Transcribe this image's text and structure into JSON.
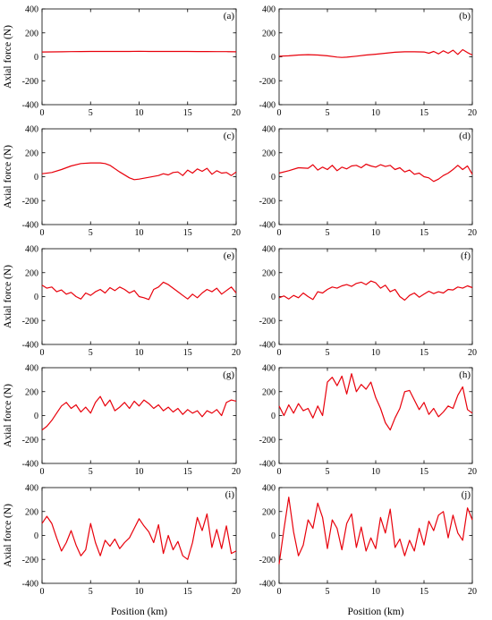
{
  "figure": {
    "ylabel": "Axial force (N)",
    "xlabel": "Position (km)",
    "line_color": "#e8000b"
  },
  "chart_data": [
    {
      "label": "(a)",
      "type": "line",
      "xlim": [
        0,
        20
      ],
      "ylim": [
        -400,
        400
      ],
      "xticks": [
        0,
        5,
        10,
        15,
        20
      ],
      "yticks": [
        -400,
        -200,
        0,
        200,
        400
      ],
      "x": [
        0,
        1,
        2,
        3,
        4,
        5,
        6,
        7,
        8,
        9,
        10,
        11,
        12,
        13,
        14,
        15,
        16,
        17,
        18,
        19,
        20
      ],
      "y": [
        40,
        41,
        42,
        43,
        44,
        45,
        45,
        45,
        45,
        45,
        46,
        45,
        45,
        45,
        45,
        45,
        44,
        44,
        43,
        43,
        42
      ]
    },
    {
      "label": "(b)",
      "type": "line",
      "xlim": [
        0,
        20
      ],
      "ylim": [
        -400,
        400
      ],
      "xticks": [
        0,
        5,
        10,
        15,
        20
      ],
      "yticks": [
        -400,
        -200,
        0,
        200,
        400
      ],
      "x": [
        0,
        1,
        2,
        3,
        4,
        5,
        6,
        6.5,
        7,
        8,
        9,
        10,
        11,
        12,
        13,
        14,
        15,
        15.5,
        16,
        16.5,
        17,
        17.5,
        18,
        18.5,
        19,
        19.5,
        20
      ],
      "y": [
        5,
        8,
        15,
        18,
        15,
        8,
        -2,
        -5,
        -3,
        5,
        15,
        22,
        30,
        38,
        42,
        42,
        40,
        30,
        45,
        25,
        50,
        30,
        55,
        20,
        60,
        35,
        15
      ]
    },
    {
      "label": "(c)",
      "type": "line",
      "xlim": [
        0,
        20
      ],
      "ylim": [
        -400,
        400
      ],
      "xticks": [
        0,
        5,
        10,
        15,
        20
      ],
      "yticks": [
        -400,
        -200,
        0,
        200,
        400
      ],
      "x": [
        0,
        1,
        2,
        3,
        4,
        5,
        6,
        6.5,
        7,
        8,
        9,
        9.5,
        10,
        11,
        12,
        12.5,
        13,
        13.5,
        14,
        14.5,
        15,
        15.5,
        16,
        16.5,
        17,
        17.5,
        18,
        18.5,
        19,
        19.5,
        20
      ],
      "y": [
        25,
        35,
        60,
        90,
        110,
        115,
        115,
        110,
        95,
        40,
        -10,
        -25,
        -20,
        -5,
        10,
        25,
        15,
        35,
        40,
        10,
        55,
        30,
        65,
        45,
        70,
        20,
        50,
        30,
        35,
        10,
        40
      ]
    },
    {
      "label": "(d)",
      "type": "line",
      "xlim": [
        0,
        20
      ],
      "ylim": [
        -400,
        400
      ],
      "xticks": [
        0,
        5,
        10,
        15,
        20
      ],
      "yticks": [
        -400,
        -200,
        0,
        200,
        400
      ],
      "x": [
        0,
        1,
        2,
        3,
        3.5,
        4,
        4.5,
        5,
        5.5,
        6,
        6.5,
        7,
        7.5,
        8,
        8.5,
        9,
        9.5,
        10,
        10.5,
        11,
        11.5,
        12,
        12.5,
        13,
        13.5,
        14,
        14.5,
        15,
        15.5,
        16,
        16.5,
        17,
        17.5,
        18,
        18.5,
        19,
        19.5,
        20
      ],
      "y": [
        30,
        50,
        75,
        70,
        100,
        55,
        80,
        60,
        95,
        50,
        80,
        65,
        90,
        95,
        75,
        105,
        90,
        80,
        100,
        85,
        95,
        60,
        75,
        40,
        55,
        20,
        30,
        0,
        -10,
        -40,
        -20,
        10,
        30,
        60,
        95,
        60,
        90,
        20
      ]
    },
    {
      "label": "(e)",
      "type": "line",
      "xlim": [
        0,
        20
      ],
      "ylim": [
        -400,
        400
      ],
      "xticks": [
        0,
        5,
        10,
        15,
        20
      ],
      "yticks": [
        -400,
        -200,
        0,
        200,
        400
      ],
      "x": [
        0,
        0.5,
        1,
        1.5,
        2,
        2.5,
        3,
        3.5,
        4,
        4.5,
        5,
        5.5,
        6,
        6.5,
        7,
        7.5,
        8,
        8.5,
        9,
        9.5,
        10,
        10.5,
        11,
        11.5,
        12,
        12.5,
        13,
        13.5,
        14,
        14.5,
        15,
        15.5,
        16,
        16.5,
        17,
        17.5,
        18,
        18.5,
        19,
        19.5,
        20
      ],
      "y": [
        95,
        70,
        80,
        40,
        55,
        20,
        35,
        0,
        -20,
        30,
        10,
        40,
        60,
        30,
        75,
        50,
        80,
        60,
        30,
        50,
        0,
        -10,
        -25,
        60,
        80,
        120,
        100,
        70,
        40,
        10,
        -20,
        20,
        -10,
        30,
        60,
        40,
        70,
        20,
        50,
        80,
        30
      ]
    },
    {
      "label": "(f)",
      "type": "line",
      "xlim": [
        0,
        20
      ],
      "ylim": [
        -400,
        400
      ],
      "xticks": [
        0,
        5,
        10,
        15,
        20
      ],
      "yticks": [
        -400,
        -200,
        0,
        200,
        400
      ],
      "x": [
        0,
        0.5,
        1,
        1.5,
        2,
        2.5,
        3,
        3.5,
        4,
        4.5,
        5,
        5.5,
        6,
        6.5,
        7,
        7.5,
        8,
        8.5,
        9,
        9.5,
        10,
        10.5,
        11,
        11.5,
        12,
        12.5,
        13,
        13.5,
        14,
        14.5,
        15,
        15.5,
        16,
        16.5,
        17,
        17.5,
        18,
        18.5,
        19,
        19.5,
        20
      ],
      "y": [
        -10,
        5,
        -20,
        10,
        -10,
        30,
        0,
        -25,
        40,
        30,
        60,
        80,
        70,
        90,
        100,
        85,
        110,
        120,
        100,
        130,
        115,
        70,
        95,
        40,
        60,
        0,
        -30,
        10,
        30,
        -5,
        20,
        45,
        25,
        40,
        30,
        60,
        55,
        80,
        70,
        90,
        75
      ]
    },
    {
      "label": "(g)",
      "type": "line",
      "xlim": [
        0,
        20
      ],
      "ylim": [
        -400,
        400
      ],
      "xticks": [
        0,
        5,
        10,
        15,
        20
      ],
      "yticks": [
        -400,
        -200,
        0,
        200,
        400
      ],
      "x": [
        0,
        0.5,
        1,
        1.5,
        2,
        2.5,
        3,
        3.5,
        4,
        4.5,
        5,
        5.5,
        6,
        6.5,
        7,
        7.5,
        8,
        8.5,
        9,
        9.5,
        10,
        10.5,
        11,
        11.5,
        12,
        12.5,
        13,
        13.5,
        14,
        14.5,
        15,
        15.5,
        16,
        16.5,
        17,
        17.5,
        18,
        18.5,
        19,
        19.5,
        20
      ],
      "y": [
        -120,
        -90,
        -40,
        20,
        80,
        110,
        60,
        90,
        30,
        70,
        20,
        110,
        160,
        80,
        130,
        40,
        70,
        110,
        60,
        120,
        80,
        130,
        100,
        60,
        90,
        40,
        70,
        30,
        60,
        10,
        50,
        20,
        40,
        -10,
        40,
        20,
        50,
        0,
        110,
        130,
        120
      ]
    },
    {
      "label": "(h)",
      "type": "line",
      "xlim": [
        0,
        20
      ],
      "ylim": [
        -400,
        400
      ],
      "xticks": [
        0,
        5,
        10,
        15,
        20
      ],
      "yticks": [
        -400,
        -200,
        0,
        200,
        400
      ],
      "x": [
        0,
        0.5,
        1,
        1.5,
        2,
        2.5,
        3,
        3.5,
        4,
        4.5,
        5,
        5.5,
        6,
        6.5,
        7,
        7.5,
        8,
        8.5,
        9,
        9.5,
        10,
        10.5,
        11,
        11.5,
        12,
        12.5,
        13,
        13.5,
        14,
        14.5,
        15,
        15.5,
        16,
        16.5,
        17,
        17.5,
        18,
        18.5,
        19,
        19.5,
        20
      ],
      "y": [
        80,
        0,
        90,
        20,
        100,
        40,
        60,
        -20,
        80,
        0,
        280,
        320,
        250,
        330,
        180,
        350,
        200,
        260,
        220,
        280,
        150,
        60,
        -60,
        -120,
        -20,
        60,
        200,
        210,
        130,
        50,
        110,
        10,
        60,
        -10,
        30,
        80,
        60,
        170,
        240,
        50,
        20
      ]
    },
    {
      "label": "(i)",
      "type": "line",
      "xlim": [
        0,
        20
      ],
      "ylim": [
        -400,
        400
      ],
      "xticks": [
        0,
        5,
        10,
        15,
        20
      ],
      "yticks": [
        -400,
        -200,
        0,
        200,
        400
      ],
      "x": [
        0,
        0.5,
        1,
        1.5,
        2,
        2.5,
        3,
        3.5,
        4,
        4.5,
        5,
        5.5,
        6,
        6.5,
        7,
        7.5,
        8,
        8.5,
        9,
        9.5,
        10,
        10.5,
        11,
        11.5,
        12,
        12.5,
        13,
        13.5,
        14,
        14.5,
        15,
        15.5,
        16,
        16.5,
        17,
        17.5,
        18,
        18.5,
        19,
        19.5,
        20
      ],
      "y": [
        100,
        160,
        100,
        -20,
        -130,
        -60,
        40,
        -80,
        -170,
        -120,
        100,
        -60,
        -170,
        -40,
        -90,
        -30,
        -110,
        -60,
        -20,
        60,
        140,
        80,
        30,
        -60,
        90,
        -150,
        0,
        -120,
        -50,
        -170,
        -200,
        -60,
        150,
        40,
        180,
        -100,
        50,
        -110,
        80,
        -150,
        -130
      ]
    },
    {
      "label": "(j)",
      "type": "line",
      "xlim": [
        0,
        20
      ],
      "ylim": [
        -400,
        400
      ],
      "xticks": [
        0,
        5,
        10,
        15,
        20
      ],
      "yticks": [
        -400,
        -200,
        0,
        200,
        400
      ],
      "x": [
        0,
        0.5,
        1,
        1.5,
        2,
        2.5,
        3,
        3.5,
        4,
        4.5,
        5,
        5.5,
        6,
        6.5,
        7,
        7.5,
        8,
        8.5,
        9,
        9.5,
        10,
        10.5,
        11,
        11.5,
        12,
        12.5,
        13,
        13.5,
        14,
        14.5,
        15,
        15.5,
        16,
        16.5,
        17,
        17.5,
        18,
        18.5,
        19,
        19.5,
        20
      ],
      "y": [
        -240,
        50,
        320,
        30,
        -170,
        -80,
        130,
        60,
        270,
        150,
        -110,
        130,
        60,
        -120,
        100,
        180,
        -100,
        70,
        -130,
        -20,
        -110,
        150,
        20,
        220,
        -100,
        -30,
        -170,
        -40,
        -130,
        60,
        -80,
        120,
        40,
        170,
        200,
        -20,
        170,
        20,
        -40,
        230,
        130
      ]
    }
  ]
}
